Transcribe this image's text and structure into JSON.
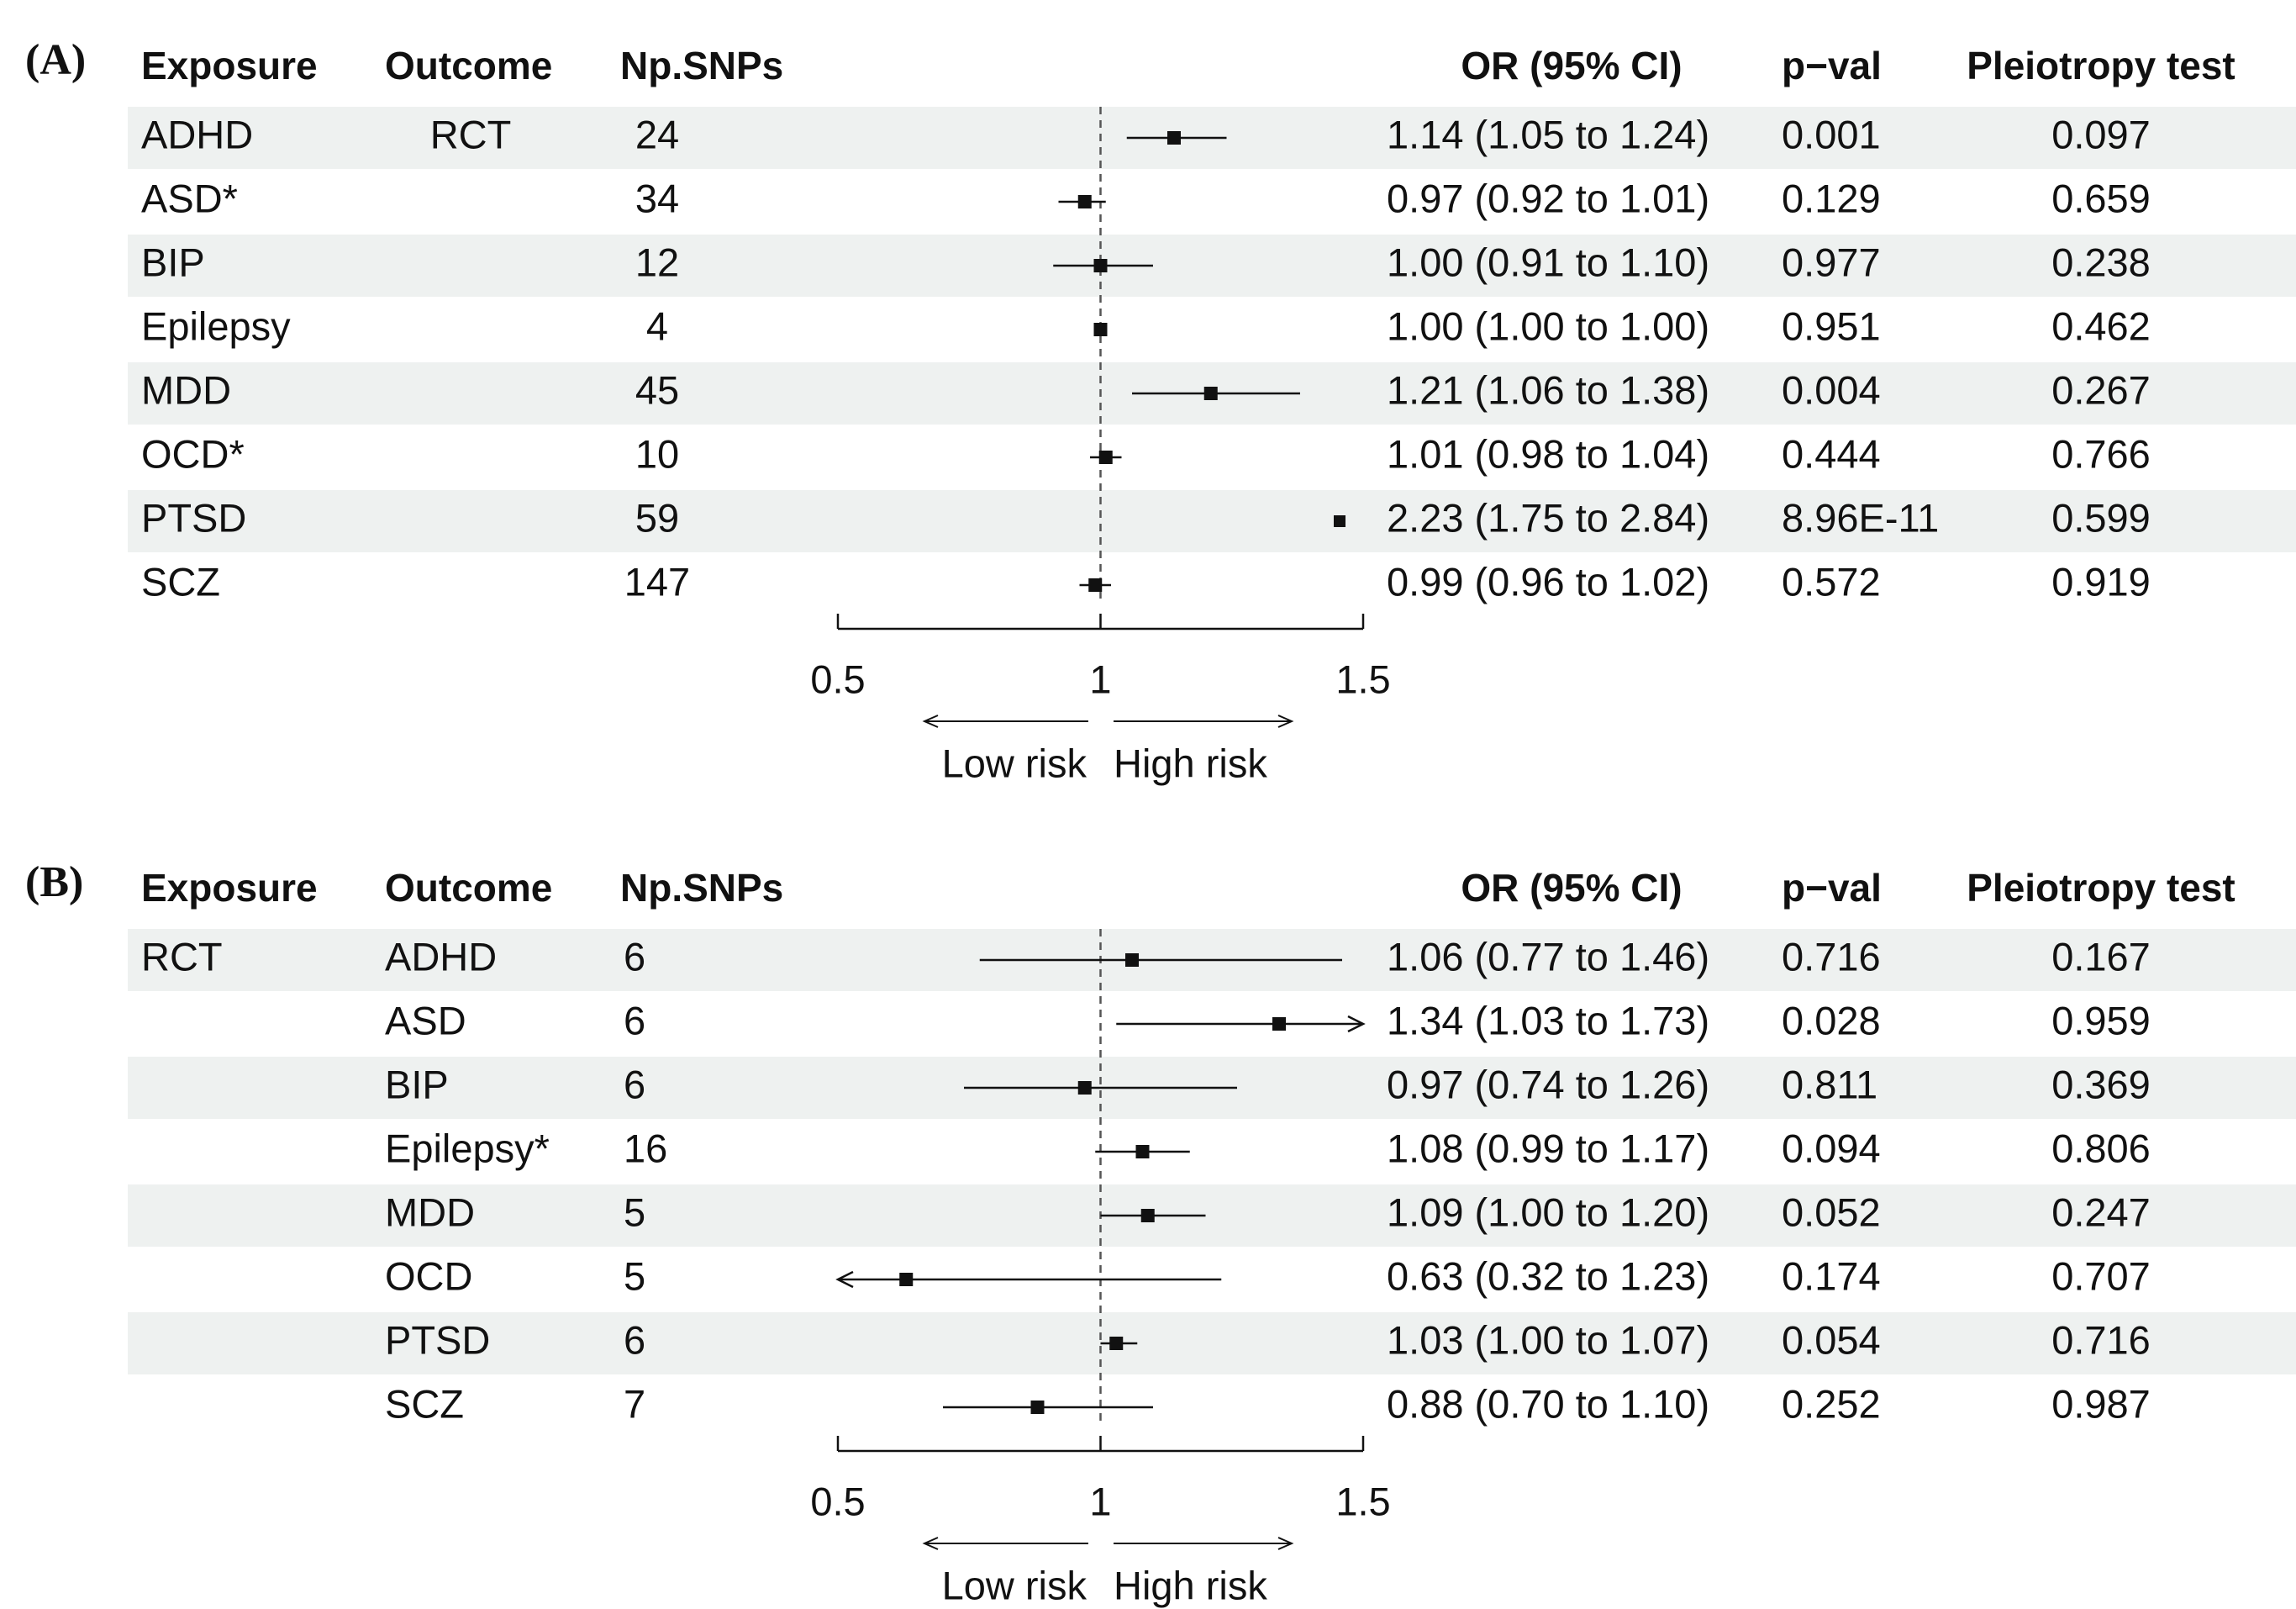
{
  "colors": {
    "stripe": "#eef1f0",
    "ink": "#111111",
    "reference_line": "#555555"
  },
  "chart_data": [
    {
      "type": "forest",
      "panel_label": "(A)",
      "headers": {
        "exposure": "Exposure",
        "outcome": "Outcome",
        "nsnps": "Np.SNPs",
        "or_ci": "OR (95% CI)",
        "pval": "p−val",
        "pleiotropy": "Pleiotropy test"
      },
      "axis": {
        "min": 0.5,
        "max": 1.5,
        "ticks": [
          "0.5",
          "1",
          "1.5"
        ],
        "reference": 1
      },
      "direction_labels": {
        "low": "Low risk",
        "high": "High risk"
      },
      "rows": [
        {
          "exposure": "ADHD",
          "outcome": "RCT",
          "nsnps": "24",
          "or_text": "1.14 (1.05 to 1.24)",
          "pval": "0.001",
          "pleiotropy": "0.097",
          "or": 1.14,
          "lo": 1.05,
          "hi": 1.24
        },
        {
          "exposure": "ASD*",
          "outcome": "",
          "nsnps": "34",
          "or_text": "0.97 (0.92 to 1.01)",
          "pval": "0.129",
          "pleiotropy": "0.659",
          "or": 0.97,
          "lo": 0.92,
          "hi": 1.01
        },
        {
          "exposure": "BIP",
          "outcome": "",
          "nsnps": "12",
          "or_text": "1.00 (0.91 to 1.10)",
          "pval": "0.977",
          "pleiotropy": "0.238",
          "or": 1.0,
          "lo": 0.91,
          "hi": 1.1
        },
        {
          "exposure": "Epilepsy",
          "outcome": "",
          "nsnps": "4",
          "or_text": "1.00 (1.00 to 1.00)",
          "pval": "0.951",
          "pleiotropy": "0.462",
          "or": 1.0,
          "lo": 1.0,
          "hi": 1.0
        },
        {
          "exposure": "MDD",
          "outcome": "",
          "nsnps": "45",
          "or_text": "1.21 (1.06 to 1.38)",
          "pval": "0.004",
          "pleiotropy": "0.267",
          "or": 1.21,
          "lo": 1.06,
          "hi": 1.38
        },
        {
          "exposure": "OCD*",
          "outcome": "",
          "nsnps": "10",
          "or_text": "1.01 (0.98 to 1.04)",
          "pval": "0.444",
          "pleiotropy": "0.766",
          "or": 1.01,
          "lo": 0.98,
          "hi": 1.04
        },
        {
          "exposure": "PTSD",
          "outcome": "",
          "nsnps": "59",
          "or_text": "2.23 (1.75 to 2.84)",
          "pval": "8.96E-11",
          "pleiotropy": "0.599",
          "or": 2.23,
          "lo": 1.75,
          "hi": 2.84
        },
        {
          "exposure": "SCZ",
          "outcome": "",
          "nsnps": "147",
          "or_text": "0.99 (0.96 to 1.02)",
          "pval": "0.572",
          "pleiotropy": "0.919",
          "or": 0.99,
          "lo": 0.96,
          "hi": 1.02
        }
      ]
    },
    {
      "type": "forest",
      "panel_label": "(B)",
      "headers": {
        "exposure": "Exposure",
        "outcome": "Outcome",
        "nsnps": "Np.SNPs",
        "or_ci": "OR (95% CI)",
        "pval": "p−val",
        "pleiotropy": "Pleiotropy test"
      },
      "axis": {
        "min": 0.5,
        "max": 1.5,
        "ticks": [
          "0.5",
          "1",
          "1.5"
        ],
        "reference": 1
      },
      "direction_labels": {
        "low": "Low risk",
        "high": "High risk"
      },
      "rows": [
        {
          "exposure": "RCT",
          "outcome": "ADHD",
          "nsnps": "6",
          "or_text": "1.06 (0.77 to 1.46)",
          "pval": "0.716",
          "pleiotropy": "0.167",
          "or": 1.06,
          "lo": 0.77,
          "hi": 1.46
        },
        {
          "exposure": "",
          "outcome": "ASD",
          "nsnps": "6",
          "or_text": "1.34 (1.03 to 1.73)",
          "pval": "0.028",
          "pleiotropy": "0.959",
          "or": 1.34,
          "lo": 1.03,
          "hi": 1.73
        },
        {
          "exposure": "",
          "outcome": "BIP",
          "nsnps": "6",
          "or_text": "0.97 (0.74 to 1.26)",
          "pval": "0.811",
          "pleiotropy": "0.369",
          "or": 0.97,
          "lo": 0.74,
          "hi": 1.26
        },
        {
          "exposure": "",
          "outcome": "Epilepsy*",
          "nsnps": "16",
          "or_text": "1.08 (0.99 to 1.17)",
          "pval": "0.094",
          "pleiotropy": "0.806",
          "or": 1.08,
          "lo": 0.99,
          "hi": 1.17
        },
        {
          "exposure": "",
          "outcome": "MDD",
          "nsnps": "5",
          "or_text": "1.09 (1.00 to 1.20)",
          "pval": "0.052",
          "pleiotropy": "0.247",
          "or": 1.09,
          "lo": 1.0,
          "hi": 1.2
        },
        {
          "exposure": "",
          "outcome": "OCD",
          "nsnps": "5",
          "or_text": "0.63 (0.32 to 1.23)",
          "pval": "0.174",
          "pleiotropy": "0.707",
          "or": 0.63,
          "lo": 0.32,
          "hi": 1.23
        },
        {
          "exposure": "",
          "outcome": "PTSD",
          "nsnps": "6",
          "or_text": "1.03 (1.00 to 1.07)",
          "pval": "0.054",
          "pleiotropy": "0.716",
          "or": 1.03,
          "lo": 1.0,
          "hi": 1.07
        },
        {
          "exposure": "",
          "outcome": "SCZ",
          "nsnps": "7",
          "or_text": "0.88 (0.70 to 1.10)",
          "pval": "0.252",
          "pleiotropy": "0.987",
          "or": 0.88,
          "lo": 0.7,
          "hi": 1.1
        }
      ]
    }
  ]
}
